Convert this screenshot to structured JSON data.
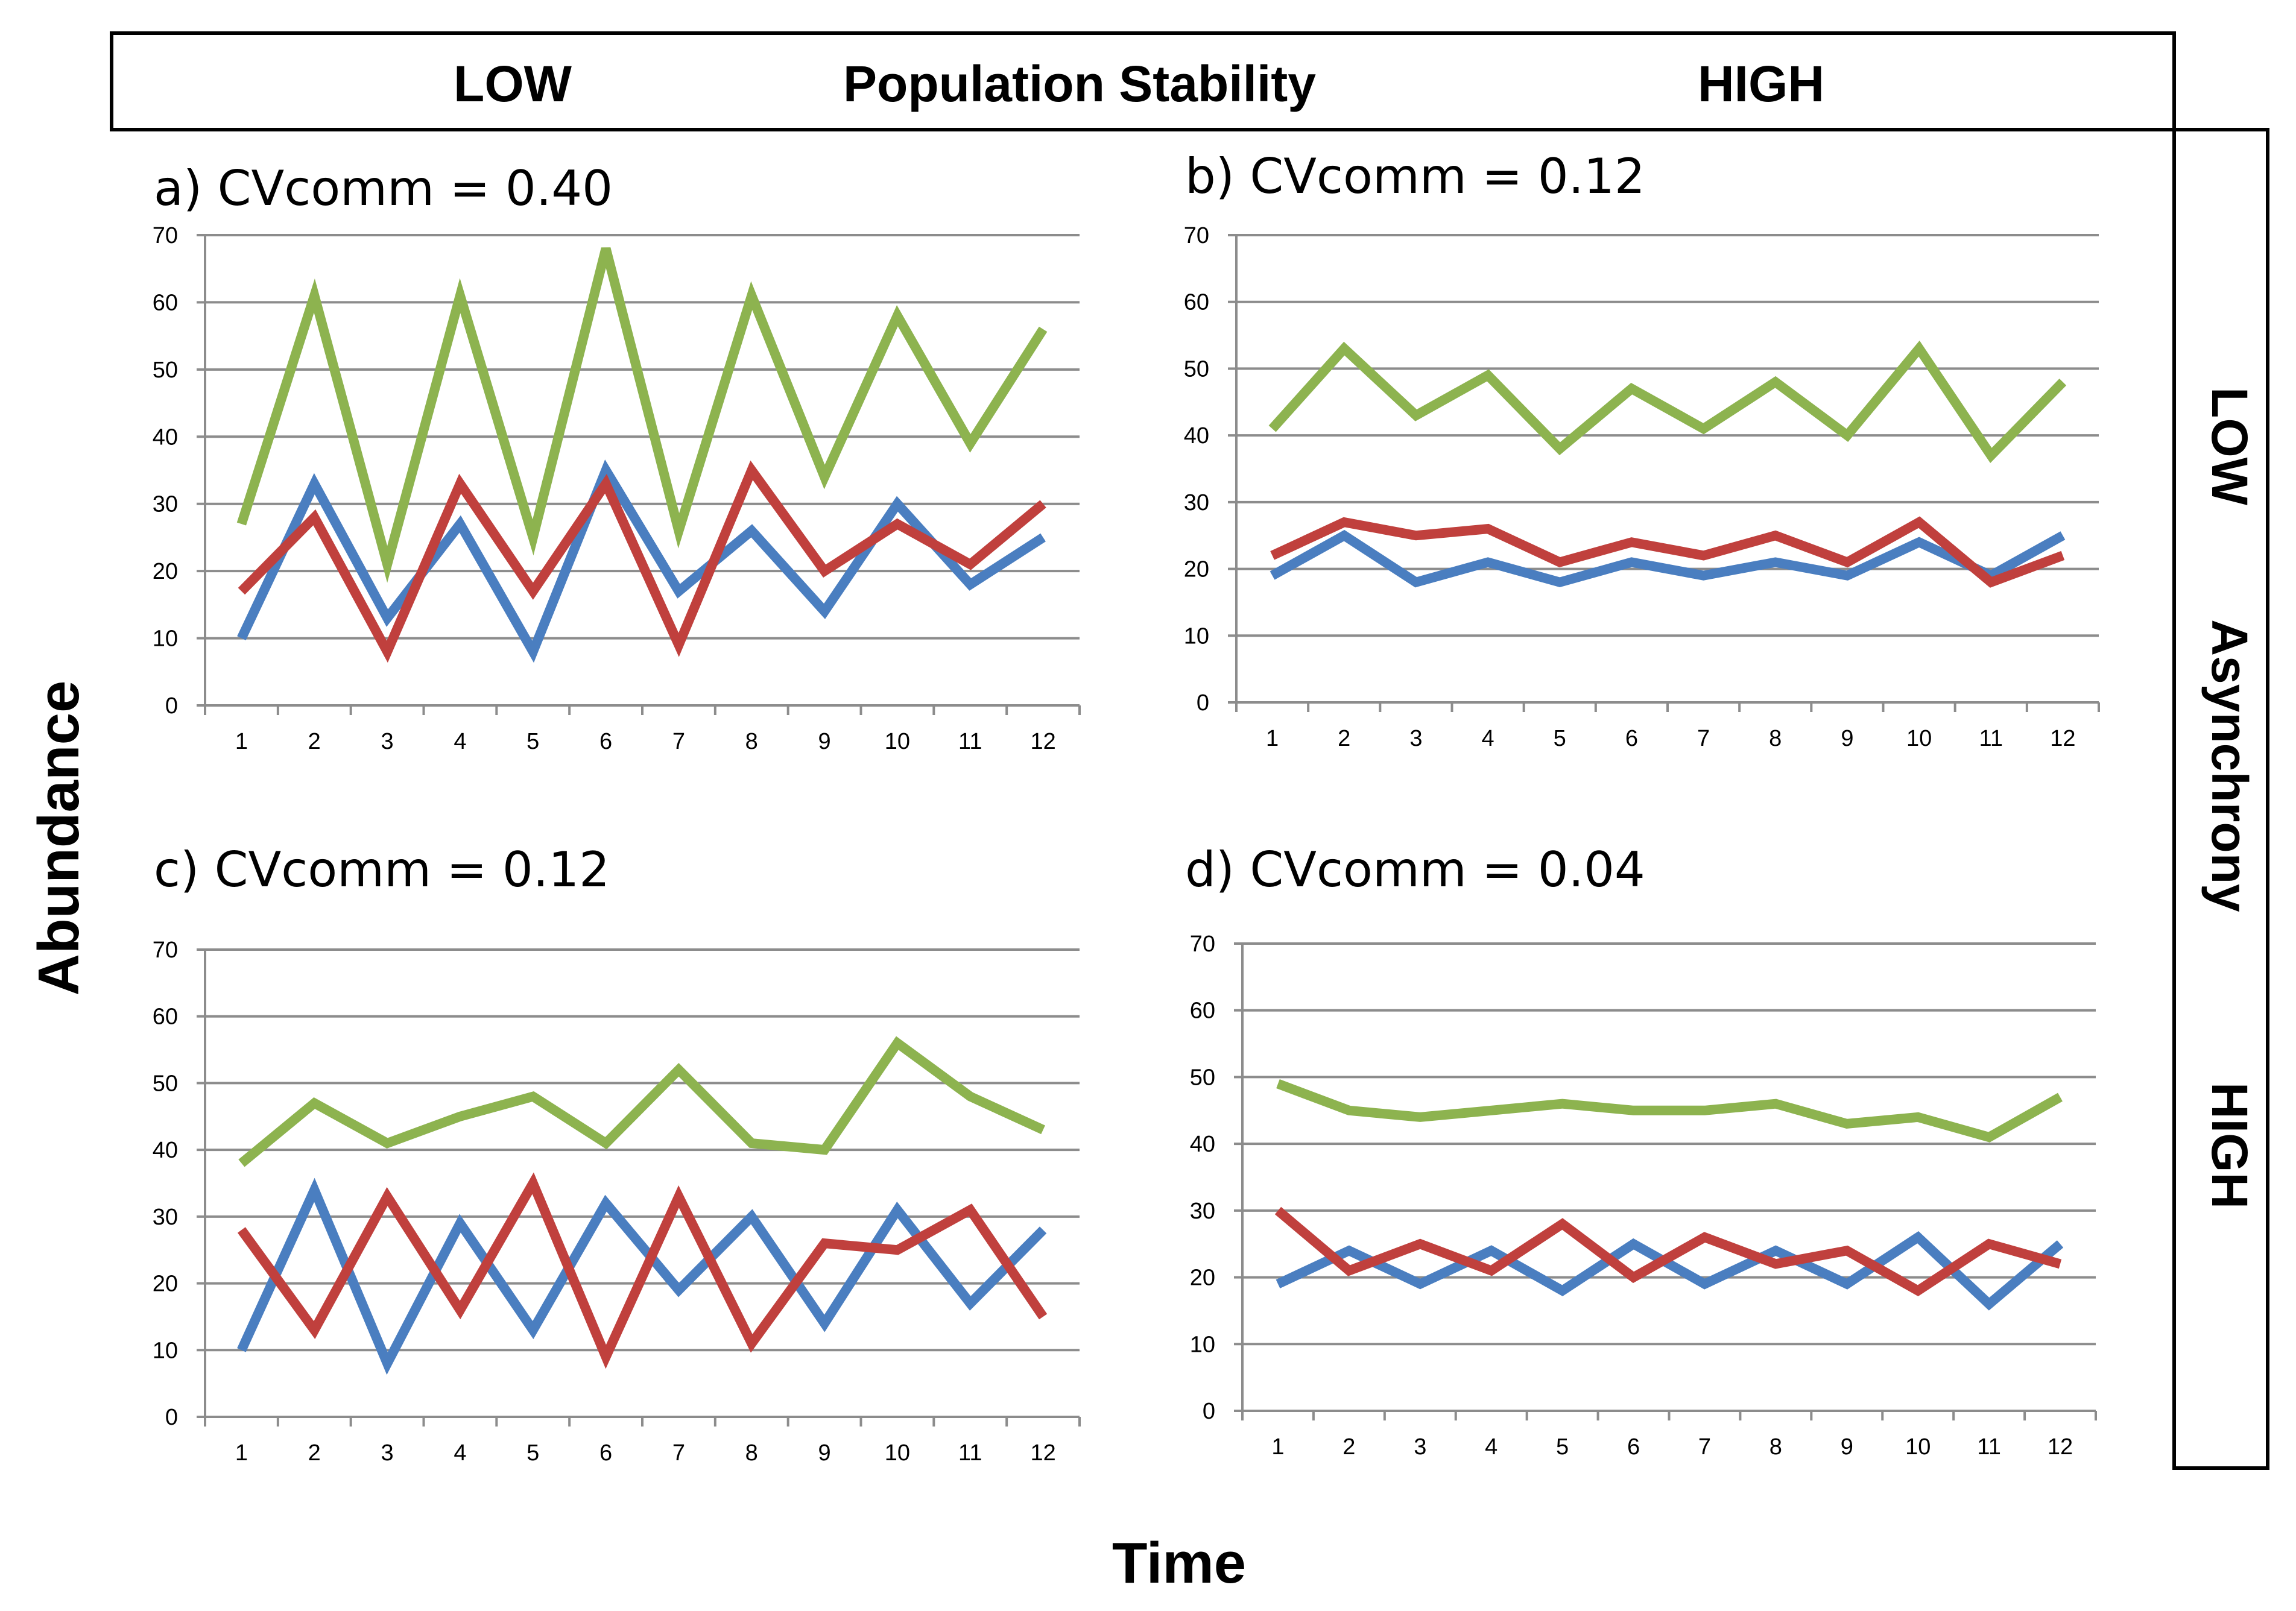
{
  "header": {
    "left": "LOW",
    "center": "Population Stability",
    "right": "HIGH"
  },
  "side": {
    "top": "LOW",
    "middle": "Asynchrony",
    "bottom": "HIGH"
  },
  "axes": {
    "ylabel": "Abundance",
    "xlabel": "Time"
  },
  "colors": {
    "blue": "#4a7ec0",
    "red": "#c0403d",
    "green": "#8db34f"
  },
  "chart_data": [
    {
      "type": "line",
      "title": "a)  CVcomm = 0.40",
      "x": [
        1,
        2,
        3,
        4,
        5,
        6,
        7,
        8,
        9,
        10,
        11,
        12
      ],
      "ylim": [
        0,
        70
      ],
      "yticks": [
        0,
        10,
        20,
        30,
        40,
        50,
        60,
        70
      ],
      "series": [
        {
          "name": "blue",
          "values": [
            10,
            33,
            13,
            27,
            8,
            35,
            17,
            26,
            14,
            30,
            18,
            25
          ]
        },
        {
          "name": "red",
          "values": [
            17,
            28,
            8,
            33,
            17,
            33,
            9,
            35,
            20,
            27,
            21,
            30
          ]
        },
        {
          "name": "green",
          "values": [
            27,
            61,
            21,
            61,
            25,
            68,
            26,
            61,
            34,
            58,
            39,
            56
          ]
        }
      ]
    },
    {
      "type": "line",
      "title": "b)  CVcomm = 0.12",
      "x": [
        1,
        2,
        3,
        4,
        5,
        6,
        7,
        8,
        9,
        10,
        11,
        12
      ],
      "ylim": [
        0,
        70
      ],
      "yticks": [
        0,
        10,
        20,
        30,
        40,
        50,
        60,
        70
      ],
      "series": [
        {
          "name": "blue",
          "values": [
            19,
            25,
            18,
            21,
            18,
            21,
            19,
            21,
            19,
            24,
            19,
            25
          ]
        },
        {
          "name": "red",
          "values": [
            22,
            27,
            25,
            26,
            21,
            24,
            22,
            25,
            21,
            27,
            18,
            22
          ]
        },
        {
          "name": "green",
          "values": [
            41,
            53,
            43,
            49,
            38,
            47,
            41,
            48,
            40,
            53,
            37,
            48
          ]
        }
      ]
    },
    {
      "type": "line",
      "title": "c)  CVcomm = 0.12",
      "x": [
        1,
        2,
        3,
        4,
        5,
        6,
        7,
        8,
        9,
        10,
        11,
        12
      ],
      "ylim": [
        0,
        70
      ],
      "yticks": [
        0,
        10,
        20,
        30,
        40,
        50,
        60,
        70
      ],
      "series": [
        {
          "name": "blue",
          "values": [
            10,
            34,
            8,
            29,
            13,
            32,
            19,
            30,
            14,
            31,
            17,
            28
          ]
        },
        {
          "name": "red",
          "values": [
            28,
            13,
            33,
            16,
            35,
            9,
            33,
            11,
            26,
            25,
            31,
            15
          ]
        },
        {
          "name": "green",
          "values": [
            38,
            47,
            41,
            45,
            48,
            41,
            52,
            41,
            40,
            56,
            48,
            43
          ]
        }
      ]
    },
    {
      "type": "line",
      "title": "d)  CVcomm = 0.04",
      "x": [
        1,
        2,
        3,
        4,
        5,
        6,
        7,
        8,
        9,
        10,
        11,
        12
      ],
      "ylim": [
        0,
        70
      ],
      "yticks": [
        0,
        10,
        20,
        30,
        40,
        50,
        60,
        70
      ],
      "series": [
        {
          "name": "blue",
          "values": [
            19,
            24,
            19,
            24,
            18,
            25,
            19,
            24,
            19,
            26,
            16,
            25
          ]
        },
        {
          "name": "red",
          "values": [
            30,
            21,
            25,
            21,
            28,
            20,
            26,
            22,
            24,
            18,
            25,
            22
          ]
        },
        {
          "name": "green",
          "values": [
            49,
            45,
            44,
            45,
            46,
            45,
            45,
            46,
            43,
            44,
            41,
            47
          ]
        }
      ]
    }
  ]
}
